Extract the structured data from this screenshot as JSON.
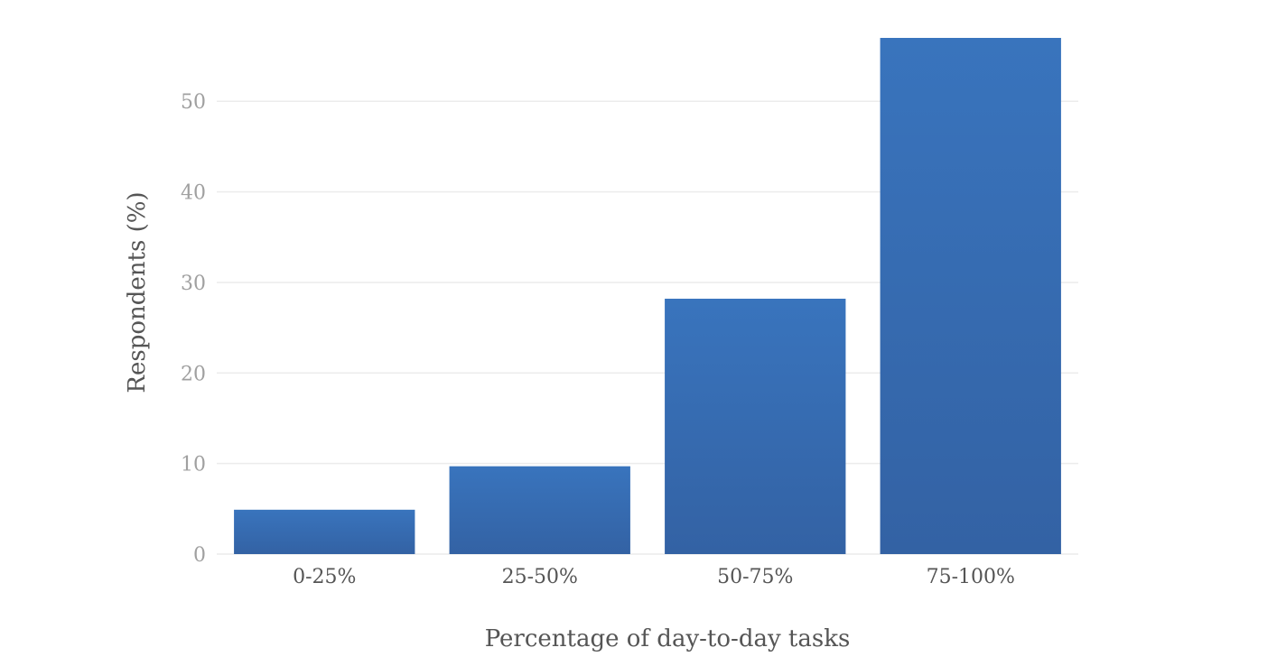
{
  "chart_data": {
    "type": "bar",
    "title": "",
    "xlabel": "Percentage of day-to-day tasks",
    "ylabel": "Respondents (%)",
    "categories": [
      "0-25%",
      "25-50%",
      "50-75%",
      "75-100%"
    ],
    "values": [
      4.9,
      9.7,
      28.2,
      57.0
    ],
    "ylim": [
      0,
      57
    ],
    "yticks": [
      0,
      10,
      20,
      30,
      40,
      50
    ],
    "grid": true,
    "legend": "none",
    "colors": {
      "bar_top": "#3974bd",
      "bar_bottom": "#3362a4",
      "grid": "#ececec",
      "tick_y": "#a0a0a0",
      "tick_x": "#555555",
      "axis_title": "#555555"
    }
  }
}
